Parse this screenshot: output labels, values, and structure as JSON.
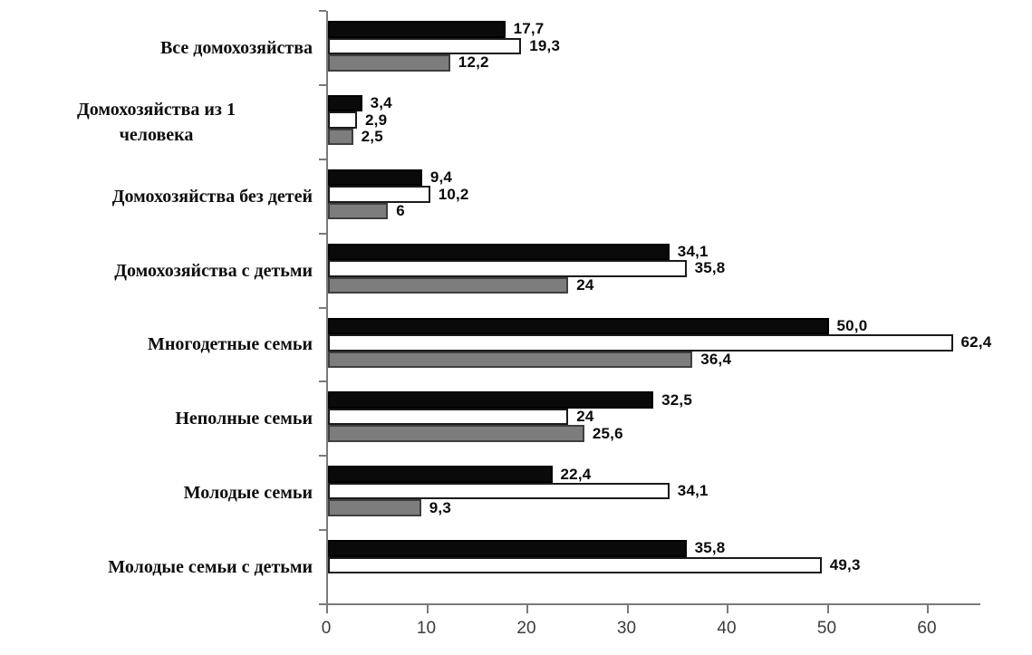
{
  "chart_data": {
    "type": "bar",
    "orientation": "horizontal",
    "title": "",
    "xlabel": "",
    "ylabel": "",
    "grid": false,
    "legend": "none",
    "xlim": [
      0,
      65
    ],
    "x_ticks": [
      0,
      10,
      20,
      30,
      40,
      50,
      60
    ],
    "x_tick_labels": [
      "0",
      "10",
      "20",
      "30",
      "40",
      "50",
      "60"
    ],
    "categories": [
      "Все домохозяйства",
      "Домохозяйства из  1\nчеловека",
      "Домохозяйства без детей",
      "Домохозяйства с детьми",
      "Многодетные семьи",
      "Неполные семьи",
      "Молодые семьи",
      "Молодые семьи с детьми"
    ],
    "series": [
      {
        "name": "",
        "fill": "#0a0a0a",
        "stroke": "#000000",
        "values": [
          17.7,
          3.4,
          9.4,
          34.1,
          50.0,
          32.5,
          22.4,
          35.8
        ],
        "labels": [
          "17,7",
          "3,4",
          "9,4",
          "34,1",
          "50,0",
          "32,5",
          "22,4",
          "35,8"
        ]
      },
      {
        "name": "",
        "fill": "#ffffff",
        "stroke": "#1a1a1a",
        "values": [
          19.3,
          2.9,
          10.2,
          35.8,
          62.4,
          24,
          34.1,
          49.3
        ],
        "labels": [
          "19,3",
          "2,9",
          "10,2",
          "35,8",
          "62,4",
          "24",
          "34,1",
          "49,3"
        ]
      },
      {
        "name": "",
        "fill": "#7d7d7d",
        "stroke": "#3f3f3f",
        "values": [
          12.2,
          2.5,
          6,
          24,
          36.4,
          25.6,
          9.3,
          null
        ],
        "labels": [
          "12,2",
          "2,5",
          "6",
          "24",
          "36,4",
          "25,6",
          "9,3",
          null
        ]
      }
    ],
    "colors": {
      "axis": "#7a7a7a",
      "tick_text": "#3c3c3c",
      "value_text": "#0a0a0a",
      "category_text": "#0d0d0d",
      "background": "#ffffff"
    }
  }
}
